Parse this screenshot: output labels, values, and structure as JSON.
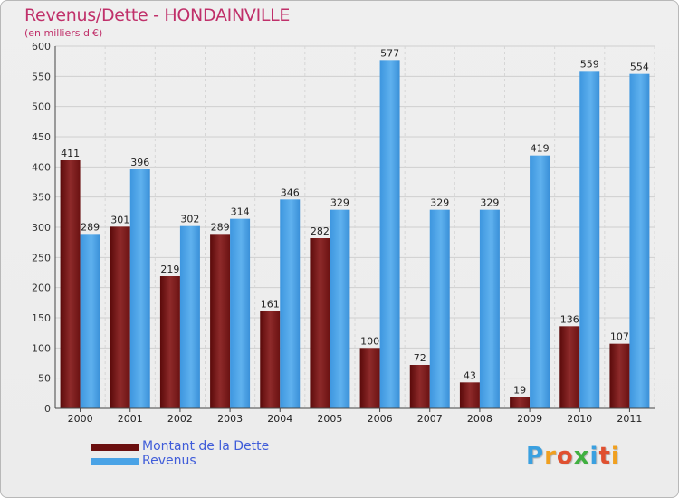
{
  "title": "Revenus/Dette - HONDAINVILLE",
  "subtitle": "(en milliers d'€)",
  "chart_data": {
    "type": "bar",
    "categories": [
      "2000",
      "2001",
      "2002",
      "2003",
      "2004",
      "2005",
      "2006",
      "2007",
      "2008",
      "2009",
      "2010",
      "2011"
    ],
    "series": [
      {
        "name": "Montant de la Dette",
        "color": "#7a1a1a",
        "values": [
          411,
          301,
          219,
          289,
          161,
          282,
          100,
          72,
          43,
          19,
          136,
          107
        ]
      },
      {
        "name": "Revenus",
        "color": "#4aa3e6",
        "values": [
          289,
          396,
          302,
          314,
          346,
          329,
          577,
          329,
          329,
          419,
          559,
          554
        ]
      }
    ],
    "ylim": [
      0,
      600
    ],
    "yticks": [
      0,
      50,
      100,
      150,
      200,
      250,
      300,
      350,
      400,
      450,
      500,
      550,
      600
    ],
    "grid": true,
    "legend": "bottom-left"
  },
  "legend": {
    "items": [
      {
        "label": "Montant de la Dette",
        "color": "#6b0f0f"
      },
      {
        "label": "Revenus",
        "color": "#4aa3e6"
      }
    ]
  },
  "logo": {
    "text": "Proxiti",
    "colors": [
      "#3aa0e0",
      "#f0a020",
      "#e05030",
      "#40b040",
      "#3aa0e0",
      "#e05030",
      "#f0a020"
    ]
  }
}
